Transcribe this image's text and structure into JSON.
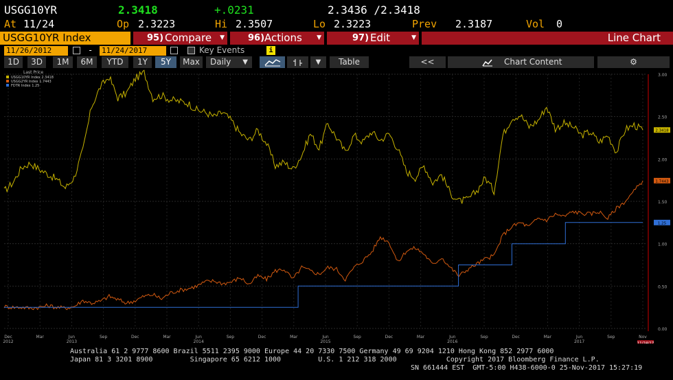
{
  "quote": {
    "ticker": "USGG10YR",
    "last": "2.3418",
    "change": "+.0231",
    "bid_ask": "2.3436 /2.3418",
    "at_label": "At",
    "at_value": "11/24",
    "open_label": "Op",
    "open_value": "2.3223",
    "high_label": "Hi",
    "high_value": "2.3507",
    "low_label": "Lo",
    "low_value": "2.3223",
    "prev_label": "Prev",
    "prev_value": "2.3187",
    "vol_label": "Vol",
    "vol_value": "0"
  },
  "command_bar": {
    "security": "USGG10YR Index",
    "compare_num": "95)",
    "compare_label": "Compare",
    "actions_num": "96)",
    "actions_label": "Actions",
    "edit_num": "97)",
    "edit_label": "Edit",
    "view_title": "Line Chart"
  },
  "date_range": {
    "start": "11/26/2012",
    "separator": "-",
    "end": "11/24/2017",
    "key_events_label": "Key Events",
    "info_icon": "i"
  },
  "toolbar": {
    "periods": [
      "1D",
      "3D",
      "1M",
      "6M",
      "YTD",
      "1Y",
      "5Y",
      "Max"
    ],
    "selected_period": "5Y",
    "frequency": "Daily",
    "table_label": "Table",
    "collapse_label": "<<",
    "chart_content_label": "Chart Content",
    "icons": [
      "line-chart-icon",
      "bar-chart-icon",
      "dropdown-icon",
      "mountain-chart-icon",
      "gear-icon",
      "calendar-icon"
    ]
  },
  "colors": {
    "accent_orange": "#f2a400",
    "price_green": "#1fe01f",
    "button_red": "#a0141e",
    "series_10y": "#c8b400",
    "series_2y": "#d45a10",
    "series_fed": "#2f6fd6",
    "selected_button": "#3d5a78"
  },
  "chart_data": {
    "type": "line",
    "legend_title": "Last Price",
    "legend_placement": "top-left",
    "series": [
      {
        "name": "USGG10YR Index",
        "last_text": "2.3418",
        "value_tag": "2.3418",
        "color": "#c8b400",
        "values": [
          1.62,
          1.72,
          1.9,
          1.95,
          1.88,
          1.82,
          1.76,
          1.66,
          1.78,
          2.1,
          2.62,
          2.85,
          2.97,
          2.72,
          2.78,
          2.95,
          3.02,
          2.72,
          2.75,
          2.7,
          2.68,
          2.66,
          2.58,
          2.55,
          2.5,
          2.55,
          2.45,
          2.3,
          2.22,
          2.34,
          2.18,
          1.92,
          1.96,
          1.88,
          2.04,
          2.3,
          2.12,
          2.42,
          2.25,
          2.08,
          2.28,
          2.2,
          2.32,
          2.22,
          2.3,
          2.12,
          1.85,
          1.78,
          1.92,
          1.72,
          1.82,
          1.6,
          1.5,
          1.52,
          1.62,
          1.78,
          1.62,
          2.28,
          2.48,
          2.52,
          2.38,
          2.45,
          2.62,
          2.36,
          2.42,
          2.38,
          2.28,
          2.32,
          2.2,
          2.28,
          2.08,
          2.35,
          2.4,
          2.3418
        ]
      },
      {
        "name": "USGG2YR Index",
        "last_text": "1.7443",
        "value_tag": "1.7443",
        "color": "#d45a10",
        "values": [
          0.26,
          0.25,
          0.25,
          0.24,
          0.25,
          0.27,
          0.25,
          0.24,
          0.26,
          0.33,
          0.3,
          0.32,
          0.38,
          0.34,
          0.3,
          0.33,
          0.38,
          0.4,
          0.35,
          0.42,
          0.45,
          0.47,
          0.5,
          0.55,
          0.56,
          0.53,
          0.55,
          0.6,
          0.52,
          0.62,
          0.58,
          0.68,
          0.7,
          0.58,
          0.72,
          0.68,
          0.64,
          0.72,
          0.7,
          0.58,
          0.72,
          0.8,
          0.9,
          1.08,
          1.02,
          0.78,
          0.92,
          0.95,
          0.88,
          0.75,
          0.84,
          0.72,
          0.62,
          0.7,
          0.76,
          0.82,
          0.86,
          1.1,
          1.2,
          1.25,
          1.2,
          1.3,
          1.28,
          1.35,
          1.32,
          1.38,
          1.36,
          1.35,
          1.38,
          1.3,
          1.42,
          1.5,
          1.62,
          1.7443
        ]
      },
      {
        "name": "FDTR Index",
        "last_text": "1.25",
        "value_tag": "1.25",
        "color": "#2f6fd6",
        "steps": [
          [
            0,
            0.25
          ],
          [
            55,
            0.5
          ],
          [
            85,
            0.75
          ],
          [
            95,
            1.0
          ],
          [
            105,
            1.25
          ]
        ]
      }
    ],
    "ylim": [
      0,
      3.0
    ],
    "y_ticks": [
      "3.00",
      "2.50",
      "2.00",
      "1.50",
      "1.00",
      "0.50",
      "0.00"
    ],
    "y_tick_values": [
      3.0,
      2.5,
      2.0,
      1.5,
      1.0,
      0.5,
      0.0
    ],
    "x_ticks_month": [
      "Dec",
      "Mar",
      "Jun",
      "Sep",
      "Dec",
      "Mar",
      "Jun",
      "Sep",
      "Dec",
      "Mar",
      "Jun",
      "Sep",
      "Dec",
      "Mar",
      "Jun",
      "Sep",
      "Dec",
      "Mar",
      "Jun",
      "Sep",
      "Nov"
    ],
    "x_ticks_year": [
      "2012",
      "",
      "2013",
      "",
      "",
      "",
      "2014",
      "",
      "",
      "",
      "2015",
      "",
      "",
      "",
      "2016",
      "",
      "",
      "",
      "2017",
      "",
      ""
    ],
    "current_date_tag": "11/24/17",
    "grid": true
  },
  "footer": {
    "line1": "Australia 61 2 9777 8600 Brazil 5511 2395 9000 Europe 44 20 7330 7500 Germany 49 69 9204 1210 Hong Kong 852 2977 6000",
    "line2": "Japan 81 3 3201 8900         Singapore 65 6212 1000         U.S. 1 212 318 2000            Copyright 2017 Bloomberg Finance L.P.",
    "line3": "SN 661444 EST  GMT-5:00 H438-6000-0 25-Nov-2017 15:27:19"
  }
}
